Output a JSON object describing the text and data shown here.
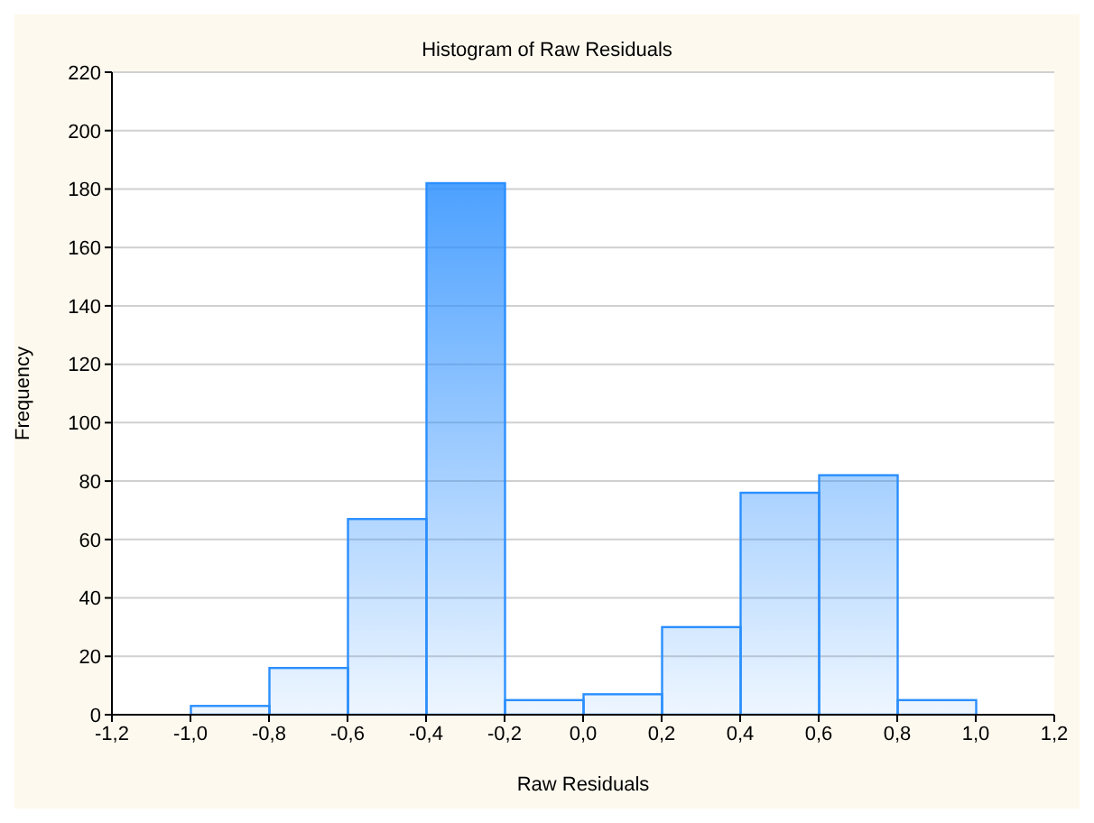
{
  "chart_data": {
    "type": "histogram",
    "title": "Histogram of Raw Residuals",
    "xlabel": "Raw Residuals",
    "ylabel": "Frequency",
    "bins": [
      -1.0,
      -0.8,
      -0.6,
      -0.4,
      -0.2,
      0.0,
      0.2,
      0.4,
      0.6,
      0.8,
      1.0
    ],
    "values": [
      3,
      16,
      67,
      182,
      5,
      7,
      30,
      76,
      82,
      5
    ],
    "color": "#2b8fff",
    "xlim": [
      -1.2,
      1.2
    ],
    "xticks": [
      {
        "value": -1.2,
        "label": "-1,2"
      },
      {
        "value": -1.0,
        "label": "-1,0"
      },
      {
        "value": -0.8,
        "label": "-0,8"
      },
      {
        "value": -0.6,
        "label": "-0,6"
      },
      {
        "value": -0.4,
        "label": "-0,4"
      },
      {
        "value": -0.2,
        "label": "-0,2"
      },
      {
        "value": 0.0,
        "label": "0,0"
      },
      {
        "value": 0.2,
        "label": "0,2"
      },
      {
        "value": 0.4,
        "label": "0,4"
      },
      {
        "value": 0.6,
        "label": "0,6"
      },
      {
        "value": 0.8,
        "label": "0,8"
      },
      {
        "value": 1.0,
        "label": "1,0"
      },
      {
        "value": 1.2,
        "label": "1,2"
      }
    ],
    "ylim": [
      0,
      220
    ],
    "yticks": [
      0,
      20,
      40,
      60,
      80,
      100,
      120,
      140,
      160,
      180,
      200,
      220
    ],
    "grid": "y"
  }
}
